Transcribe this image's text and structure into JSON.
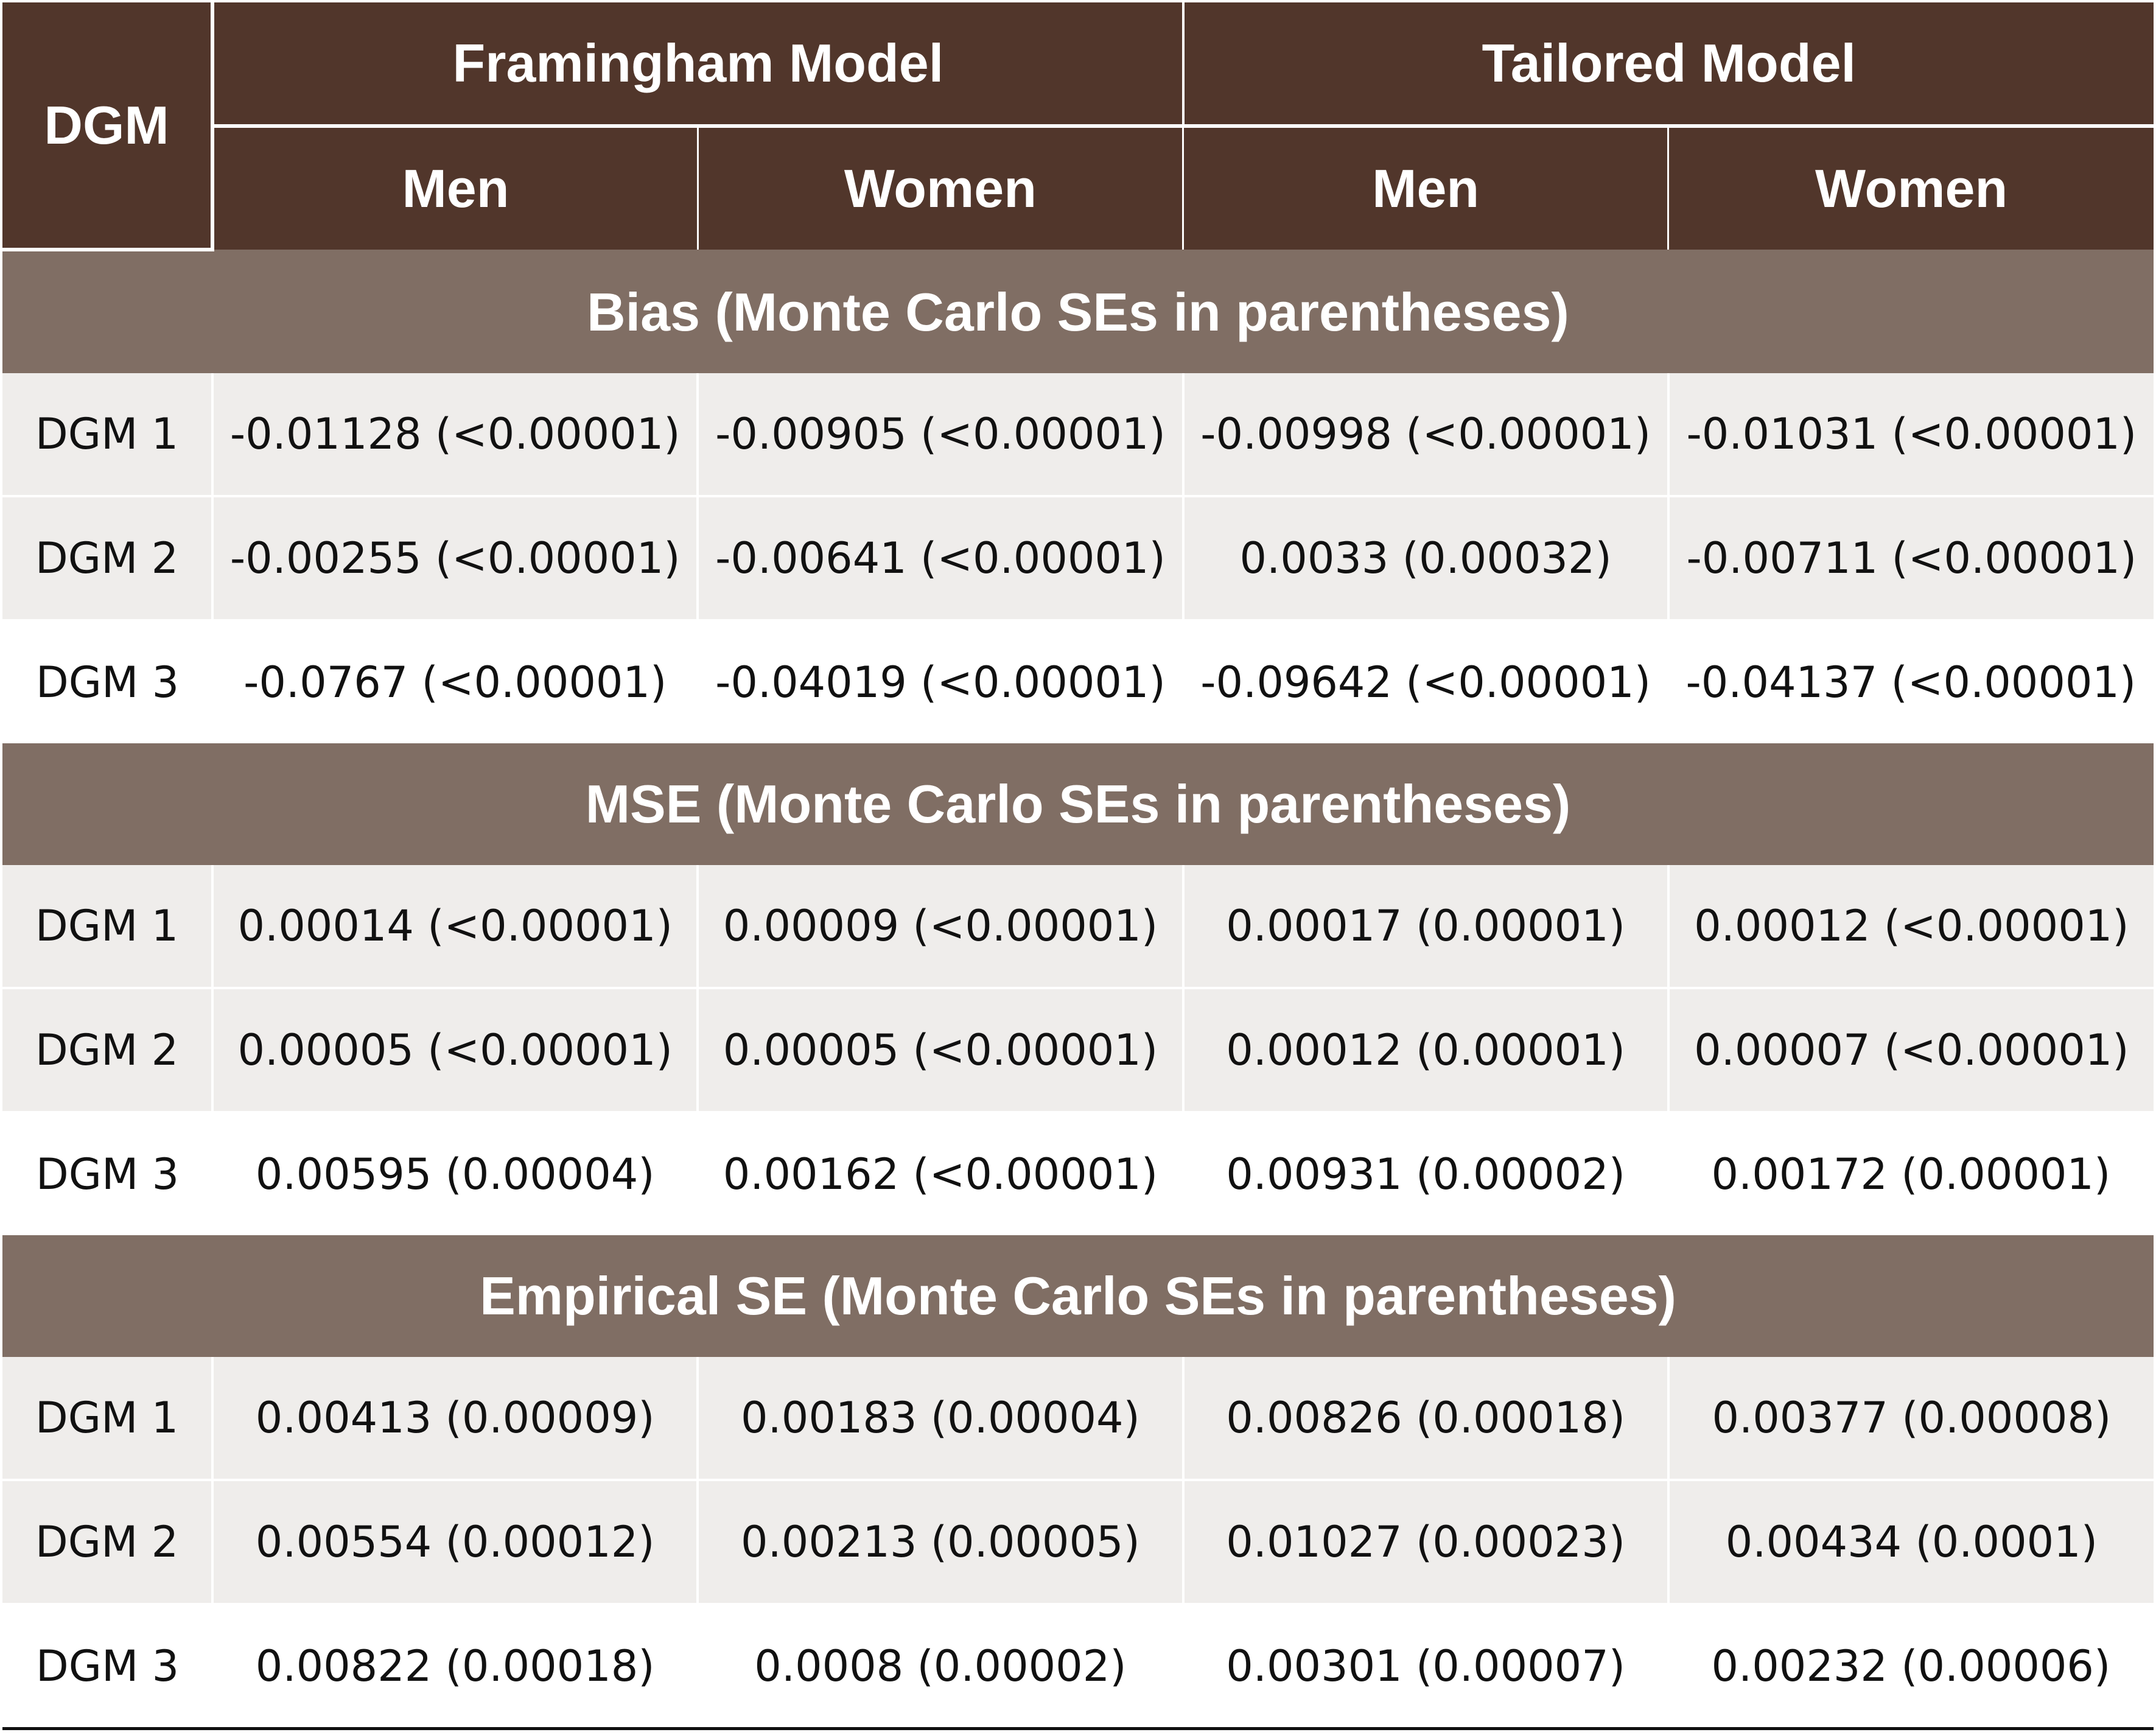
{
  "header": {
    "dgm_label": "DGM",
    "groups": [
      "Framingham Model",
      "Tailored Model"
    ],
    "subgroups": [
      "Men",
      "Women",
      "Men",
      "Women"
    ]
  },
  "sections": [
    {
      "title": "Bias (Monte Carlo SEs in parentheses)",
      "rows": [
        {
          "dgm": "DGM 1",
          "values": [
            "-0.01128 (<0.00001)",
            "-0.00905 (<0.00001)",
            "-0.00998 (<0.00001)",
            "-0.01031 (<0.00001)"
          ]
        },
        {
          "dgm": "DGM 2",
          "values": [
            "-0.00255 (<0.00001)",
            "-0.00641 (<0.00001)",
            "0.0033 (0.00032)",
            "-0.00711 (<0.00001)"
          ]
        },
        {
          "dgm": "DGM 3",
          "values": [
            "-0.0767 (<0.00001)",
            "-0.04019 (<0.00001)",
            "-0.09642 (<0.00001)",
            "-0.04137 (<0.00001)"
          ]
        }
      ]
    },
    {
      "title": "MSE (Monte Carlo SEs in parentheses)",
      "rows": [
        {
          "dgm": "DGM 1",
          "values": [
            "0.00014 (<0.00001)",
            "0.00009 (<0.00001)",
            "0.00017 (0.00001)",
            "0.00012 (<0.00001)"
          ]
        },
        {
          "dgm": "DGM 2",
          "values": [
            "0.00005 (<0.00001)",
            "0.00005 (<0.00001)",
            "0.00012 (0.00001)",
            "0.00007 (<0.00001)"
          ]
        },
        {
          "dgm": "DGM 3",
          "values": [
            "0.00595 (0.00004)",
            "0.00162 (<0.00001)",
            "0.00931 (0.00002)",
            "0.00172 (0.00001)"
          ]
        }
      ]
    },
    {
      "title": "Empirical SE (Monte Carlo SEs in parentheses)",
      "rows": [
        {
          "dgm": "DGM 1",
          "values": [
            "0.00413 (0.00009)",
            "0.00183 (0.00004)",
            "0.00826 (0.00018)",
            "0.00377 (0.00008)"
          ]
        },
        {
          "dgm": "DGM 2",
          "values": [
            "0.00554 (0.00012)",
            "0.00213 (0.00005)",
            "0.01027 (0.00023)",
            "0.00434 (0.0001)"
          ]
        },
        {
          "dgm": "DGM 3",
          "values": [
            "0.00822 (0.00018)",
            "0.0008 (0.00002)",
            "0.00301 (0.00007)",
            "0.00232 (0.00006)"
          ]
        }
      ]
    }
  ],
  "colors": {
    "header_bg": "#51362b",
    "section_bg": "#806e64",
    "shaded_row_bg": "#efedeb"
  }
}
